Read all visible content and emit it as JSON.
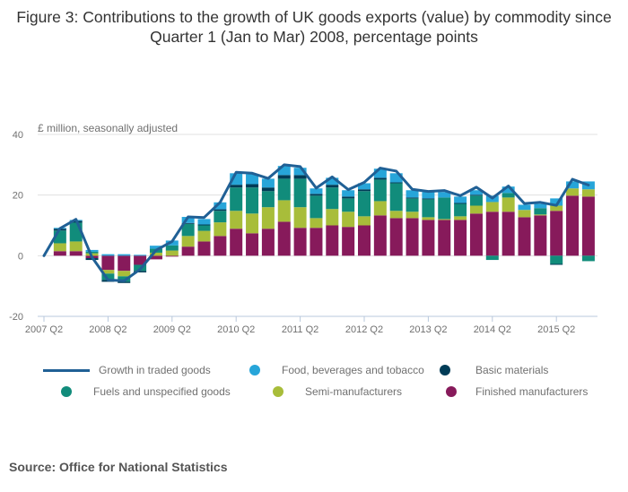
{
  "title": "Figure 3: Contributions to the growth of UK goods exports (value) by commodity since Quarter 1 (Jan to Mar) 2008, percentage points",
  "source": "Source: Office for National Statistics",
  "colors": {
    "line": "#206095",
    "food": "#27a5d9",
    "basic": "#003c57",
    "fuels": "#118c7b",
    "semi": "#a8bd3a",
    "finished": "#871a5b",
    "grid": "#e0e0e0",
    "axis": "#b8c8dc"
  },
  "chart_data": {
    "type": "bar",
    "stacked": true,
    "title": "Figure 3: Contributions to the growth of UK goods exports (value) by commodity since Quarter 1 (Jan to Mar) 2008, percentage points",
    "ylabel": "£ million, seasonally adjusted",
    "xlabel": "",
    "ylim": [
      -20,
      40
    ],
    "yticks": [
      -20,
      0,
      20,
      40
    ],
    "grid": true,
    "legend_position": "bottom",
    "x": [
      "2007 Q2",
      "2007 Q3",
      "2007 Q4",
      "2008 Q1",
      "2008 Q2",
      "2008 Q3",
      "2008 Q4",
      "2009 Q1",
      "2009 Q2",
      "2009 Q3",
      "2009 Q4",
      "2010 Q1",
      "2010 Q2",
      "2010 Q3",
      "2010 Q4",
      "2011 Q1",
      "2011 Q2",
      "2011 Q3",
      "2011 Q4",
      "2012 Q1",
      "2012 Q2",
      "2012 Q3",
      "2012 Q4",
      "2013 Q1",
      "2013 Q2",
      "2013 Q3",
      "2013 Q4",
      "2014 Q1",
      "2014 Q2",
      "2014 Q3",
      "2014 Q4",
      "2015 Q1",
      "2015 Q2",
      "2015 Q3",
      "2015 Q4"
    ],
    "xtick_labels": [
      "2007 Q2",
      "2008 Q2",
      "2009 Q2",
      "2010 Q2",
      "2011 Q2",
      "2012 Q2",
      "2013 Q2",
      "2014 Q2",
      "2015 Q2"
    ],
    "series": [
      {
        "name": "Finished manufacturers",
        "key": "finished",
        "kind": "bar",
        "values": [
          0,
          1.5,
          1.5,
          -0.8,
          -4.7,
          -5,
          -3,
          -1.2,
          -0.3,
          3,
          4.7,
          6.5,
          8.9,
          7.4,
          8.9,
          11.2,
          9.2,
          9.2,
          10,
          9.5,
          10,
          13.3,
          12.4,
          12.4,
          11.8,
          11.8,
          11.8,
          13.9,
          14.5,
          14.5,
          12.7,
          13.3,
          14.8,
          19.8,
          19.5
        ]
      },
      {
        "name": "Semi-manufacturers",
        "key": "semi",
        "kind": "bar",
        "values": [
          0,
          2.6,
          3.2,
          0.8,
          -1.2,
          -1.8,
          0,
          1,
          1.7,
          3.5,
          3.5,
          4.5,
          5.9,
          6.5,
          7.1,
          7.1,
          6.8,
          3.2,
          5.4,
          5,
          3,
          4.7,
          2.4,
          2.1,
          0.9,
          0.3,
          1.2,
          2.6,
          3.2,
          4.7,
          2.4,
          0.3,
          1.7,
          2.4,
          2.4
        ]
      },
      {
        "name": "Fuels and unspecified goods",
        "key": "fuels",
        "kind": "bar",
        "values": [
          0,
          4.2,
          6.2,
          0.5,
          -2.1,
          -1.8,
          -2,
          1.3,
          1.7,
          4,
          1.8,
          3.8,
          7.7,
          8.6,
          5.3,
          7.1,
          9.4,
          7.4,
          7.1,
          4.4,
          8.3,
          7.1,
          9.1,
          4.4,
          5.9,
          7.1,
          4.1,
          3.3,
          -1.4,
          1.5,
          0,
          2.1,
          -2.7,
          0,
          -1.8
        ]
      },
      {
        "name": "Basic materials",
        "key": "basic",
        "kind": "bar",
        "values": [
          0,
          0.6,
          0.6,
          -0.6,
          -0.6,
          -0.4,
          -0.5,
          0,
          0,
          0.3,
          0.3,
          0.5,
          0.9,
          1.1,
          1.2,
          1.2,
          1.2,
          0.6,
          0.9,
          0.6,
          0.6,
          0.6,
          0.3,
          0.3,
          0.3,
          0,
          0.3,
          0.3,
          0,
          0,
          0,
          0,
          -0.3,
          0,
          0
        ]
      },
      {
        "name": "Food, beverages and tobacco",
        "key": "food",
        "kind": "bar",
        "values": [
          0,
          0.3,
          0.3,
          0.6,
          0.5,
          0.5,
          0.3,
          1,
          1.6,
          2,
          1.8,
          2.3,
          3.8,
          3.3,
          2.9,
          3,
          2.4,
          1.8,
          2.3,
          2.1,
          2,
          3,
          3,
          2.4,
          2.1,
          1.8,
          2.1,
          1.5,
          2.1,
          2.1,
          1.7,
          1.4,
          2.4,
          2.3,
          2.6
        ]
      },
      {
        "name": "Growth in traded goods",
        "key": "line",
        "kind": "line",
        "values": [
          0,
          9,
          12,
          -0.5,
          -8,
          -8.3,
          -4.5,
          1.8,
          4.7,
          12.8,
          12.6,
          17.6,
          27.5,
          27.2,
          25.5,
          30,
          29.4,
          22.3,
          26,
          21.8,
          24.2,
          28.9,
          27.9,
          21.9,
          21.2,
          21.5,
          19.8,
          22.6,
          19,
          23,
          17.2,
          17.6,
          16.6,
          25.2,
          23.3
        ]
      }
    ]
  },
  "legend": [
    {
      "label": "Growth in traded goods",
      "key": "line",
      "symbol": "line"
    },
    {
      "label": "Food, beverages and tobacco",
      "key": "food",
      "symbol": "dot"
    },
    {
      "label": "Basic materials",
      "key": "basic",
      "symbol": "dot"
    },
    {
      "label": "Fuels and unspecified goods",
      "key": "fuels",
      "symbol": "dot"
    },
    {
      "label": "Semi-manufacturers",
      "key": "semi",
      "symbol": "dot"
    },
    {
      "label": "Finished manufacturers",
      "key": "finished",
      "symbol": "dot"
    }
  ]
}
